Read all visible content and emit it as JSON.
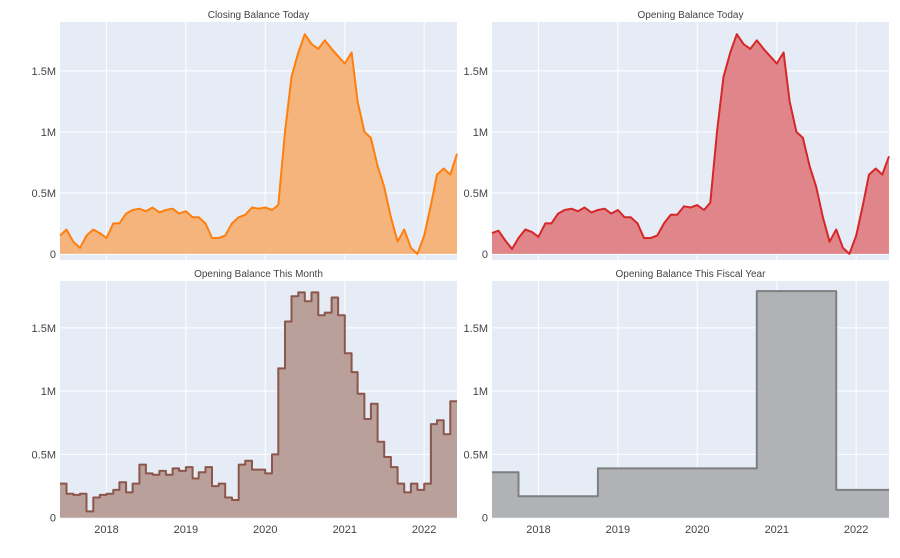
{
  "chart_data": [
    {
      "type": "area",
      "title": "Closing Balance Today",
      "xlabel": "",
      "ylabel": "",
      "xlim": [
        "2017-06-01",
        "2022-06-01"
      ],
      "ylim": [
        -50000,
        1900000
      ],
      "y_ticks": [
        {
          "value": 0,
          "label": "0"
        },
        {
          "value": 500000,
          "label": "0.5M"
        },
        {
          "value": 1000000,
          "label": "1M"
        },
        {
          "value": 1500000,
          "label": "1.5M"
        }
      ],
      "x_ticks": [],
      "grid": true,
      "line_color": "#ff7f0e",
      "fill_color": "#f4b47c",
      "series": [
        {
          "x": [
            "2017-06-01",
            "2017-07-01",
            "2017-08-01",
            "2017-09-01",
            "2017-10-01",
            "2017-11-01",
            "2017-12-01",
            "2018-01-01",
            "2018-02-01",
            "2018-03-01",
            "2018-04-01",
            "2018-05-01",
            "2018-06-01",
            "2018-07-01",
            "2018-08-01",
            "2018-09-01",
            "2018-10-01",
            "2018-11-01",
            "2018-12-01",
            "2019-01-01",
            "2019-02-01",
            "2019-03-01",
            "2019-04-01",
            "2019-05-01",
            "2019-06-01",
            "2019-07-01",
            "2019-08-01",
            "2019-09-01",
            "2019-10-01",
            "2019-11-01",
            "2019-12-01",
            "2020-01-01",
            "2020-02-01",
            "2020-03-01",
            "2020-04-01",
            "2020-05-01",
            "2020-06-01",
            "2020-07-01",
            "2020-08-01",
            "2020-09-01",
            "2020-10-01",
            "2020-11-01",
            "2020-12-01",
            "2021-01-01",
            "2021-02-01",
            "2021-03-01",
            "2021-04-01",
            "2021-05-01",
            "2021-06-01",
            "2021-07-01",
            "2021-08-01",
            "2021-09-01",
            "2021-10-01",
            "2021-11-01",
            "2021-12-01",
            "2022-01-01",
            "2022-02-01",
            "2022-03-01",
            "2022-04-01",
            "2022-05-01",
            "2022-06-01"
          ],
          "y": [
            150000,
            200000,
            100000,
            50000,
            150000,
            200000,
            170000,
            130000,
            250000,
            250000,
            330000,
            360000,
            370000,
            350000,
            380000,
            340000,
            360000,
            370000,
            330000,
            350000,
            300000,
            300000,
            250000,
            130000,
            130000,
            150000,
            250000,
            300000,
            320000,
            380000,
            370000,
            380000,
            360000,
            400000,
            1000000,
            1450000,
            1650000,
            1800000,
            1720000,
            1680000,
            1750000,
            1680000,
            1620000,
            1560000,
            1650000,
            1250000,
            1000000,
            950000,
            720000,
            550000,
            300000,
            100000,
            200000,
            50000,
            0,
            150000,
            400000,
            650000,
            700000,
            650000,
            820000
          ]
        }
      ]
    },
    {
      "type": "area",
      "title": "Opening Balance Today",
      "xlabel": "",
      "ylabel": "",
      "xlim": [
        "2017-06-01",
        "2022-06-01"
      ],
      "ylim": [
        -50000,
        1900000
      ],
      "y_ticks": [
        {
          "value": 0,
          "label": "0"
        },
        {
          "value": 500000,
          "label": "0.5M"
        },
        {
          "value": 1000000,
          "label": "1M"
        },
        {
          "value": 1500000,
          "label": "1.5M"
        }
      ],
      "x_ticks": [],
      "grid": true,
      "line_color": "#d62728",
      "fill_color": "#e0868a",
      "series": [
        {
          "x": [
            "2017-06-01",
            "2017-07-01",
            "2017-08-01",
            "2017-09-01",
            "2017-10-01",
            "2017-11-01",
            "2017-12-01",
            "2018-01-01",
            "2018-02-01",
            "2018-03-01",
            "2018-04-01",
            "2018-05-01",
            "2018-06-01",
            "2018-07-01",
            "2018-08-01",
            "2018-09-01",
            "2018-10-01",
            "2018-11-01",
            "2018-12-01",
            "2019-01-01",
            "2019-02-01",
            "2019-03-01",
            "2019-04-01",
            "2019-05-01",
            "2019-06-01",
            "2019-07-01",
            "2019-08-01",
            "2019-09-01",
            "2019-10-01",
            "2019-11-01",
            "2019-12-01",
            "2020-01-01",
            "2020-02-01",
            "2020-03-01",
            "2020-04-01",
            "2020-05-01",
            "2020-06-01",
            "2020-07-01",
            "2020-08-01",
            "2020-09-01",
            "2020-10-01",
            "2020-11-01",
            "2020-12-01",
            "2021-01-01",
            "2021-02-01",
            "2021-03-01",
            "2021-04-01",
            "2021-05-01",
            "2021-06-01",
            "2021-07-01",
            "2021-08-01",
            "2021-09-01",
            "2021-10-01",
            "2021-11-01",
            "2021-12-01",
            "2022-01-01",
            "2022-02-01",
            "2022-03-01",
            "2022-04-01",
            "2022-05-01",
            "2022-06-01"
          ],
          "y": [
            170000,
            190000,
            110000,
            40000,
            130000,
            200000,
            180000,
            140000,
            250000,
            250000,
            330000,
            360000,
            370000,
            350000,
            380000,
            340000,
            360000,
            370000,
            330000,
            360000,
            300000,
            300000,
            250000,
            130000,
            130000,
            150000,
            250000,
            320000,
            320000,
            390000,
            380000,
            400000,
            360000,
            420000,
            1000000,
            1450000,
            1650000,
            1800000,
            1720000,
            1680000,
            1750000,
            1680000,
            1620000,
            1560000,
            1650000,
            1250000,
            1000000,
            950000,
            720000,
            550000,
            300000,
            100000,
            200000,
            50000,
            0,
            150000,
            400000,
            650000,
            700000,
            650000,
            800000
          ]
        }
      ]
    },
    {
      "type": "area",
      "title": "Opening Balance This Month",
      "xlabel": "",
      "ylabel": "",
      "xlim": [
        "2017-06-01",
        "2022-06-01"
      ],
      "ylim": [
        -10000,
        1870000
      ],
      "y_ticks": [
        {
          "value": 0,
          "label": "0"
        },
        {
          "value": 500000,
          "label": "0.5M"
        },
        {
          "value": 1000000,
          "label": "1M"
        },
        {
          "value": 1500000,
          "label": "1.5M"
        }
      ],
      "x_ticks": [
        {
          "value": "2018-01-01",
          "label": "2018"
        },
        {
          "value": "2019-01-01",
          "label": "2019"
        },
        {
          "value": "2020-01-01",
          "label": "2020"
        },
        {
          "value": "2021-01-01",
          "label": "2021"
        },
        {
          "value": "2022-01-01",
          "label": "2022"
        }
      ],
      "grid": true,
      "step": true,
      "line_color": "#8c564b",
      "fill_color": "#b9a09b",
      "series": [
        {
          "x": [
            "2017-06-01",
            "2017-07-01",
            "2017-08-01",
            "2017-09-01",
            "2017-10-01",
            "2017-11-01",
            "2017-12-01",
            "2018-01-01",
            "2018-02-01",
            "2018-03-01",
            "2018-04-01",
            "2018-05-01",
            "2018-06-01",
            "2018-07-01",
            "2018-08-01",
            "2018-09-01",
            "2018-10-01",
            "2018-11-01",
            "2018-12-01",
            "2019-01-01",
            "2019-02-01",
            "2019-03-01",
            "2019-04-01",
            "2019-05-01",
            "2019-06-01",
            "2019-07-01",
            "2019-08-01",
            "2019-09-01",
            "2019-10-01",
            "2019-11-01",
            "2019-12-01",
            "2020-01-01",
            "2020-02-01",
            "2020-03-01",
            "2020-04-01",
            "2020-05-01",
            "2020-06-01",
            "2020-07-01",
            "2020-08-01",
            "2020-09-01",
            "2020-10-01",
            "2020-11-01",
            "2020-12-01",
            "2021-01-01",
            "2021-02-01",
            "2021-03-01",
            "2021-04-01",
            "2021-05-01",
            "2021-06-01",
            "2021-07-01",
            "2021-08-01",
            "2021-09-01",
            "2021-10-01",
            "2021-11-01",
            "2021-12-01",
            "2022-01-01",
            "2022-02-01",
            "2022-03-01",
            "2022-04-01",
            "2022-05-01",
            "2022-06-01"
          ],
          "y": [
            270000,
            190000,
            180000,
            190000,
            50000,
            160000,
            180000,
            190000,
            220000,
            280000,
            200000,
            270000,
            420000,
            350000,
            340000,
            370000,
            340000,
            390000,
            370000,
            400000,
            310000,
            360000,
            400000,
            250000,
            270000,
            160000,
            140000,
            420000,
            450000,
            380000,
            380000,
            350000,
            500000,
            1180000,
            1550000,
            1750000,
            1780000,
            1710000,
            1780000,
            1600000,
            1620000,
            1740000,
            1600000,
            1300000,
            1150000,
            980000,
            780000,
            900000,
            600000,
            480000,
            400000,
            270000,
            200000,
            270000,
            220000,
            270000,
            740000,
            770000,
            660000,
            920000,
            920000
          ]
        }
      ]
    },
    {
      "type": "area",
      "title": "Opening Balance This Fiscal Year",
      "xlabel": "",
      "ylabel": "",
      "xlim": [
        "2017-06-01",
        "2022-06-01"
      ],
      "ylim": [
        -10000,
        1870000
      ],
      "y_ticks": [
        {
          "value": 0,
          "label": "0"
        },
        {
          "value": 500000,
          "label": "0.5M"
        },
        {
          "value": 1000000,
          "label": "1M"
        },
        {
          "value": 1500000,
          "label": "1.5M"
        }
      ],
      "x_ticks": [
        {
          "value": "2018-01-01",
          "label": "2018"
        },
        {
          "value": "2019-01-01",
          "label": "2019"
        },
        {
          "value": "2020-01-01",
          "label": "2020"
        },
        {
          "value": "2021-01-01",
          "label": "2021"
        },
        {
          "value": "2022-01-01",
          "label": "2022"
        }
      ],
      "grid": true,
      "step": true,
      "line_color": "#7f7f7f",
      "fill_color": "#b0b2b6",
      "series": [
        {
          "x": [
            "2017-06-01",
            "2017-10-01",
            "2018-10-01",
            "2020-10-01",
            "2021-10-01",
            "2022-06-01"
          ],
          "y": [
            360000,
            170000,
            390000,
            1790000,
            220000,
            220000
          ]
        }
      ]
    }
  ]
}
